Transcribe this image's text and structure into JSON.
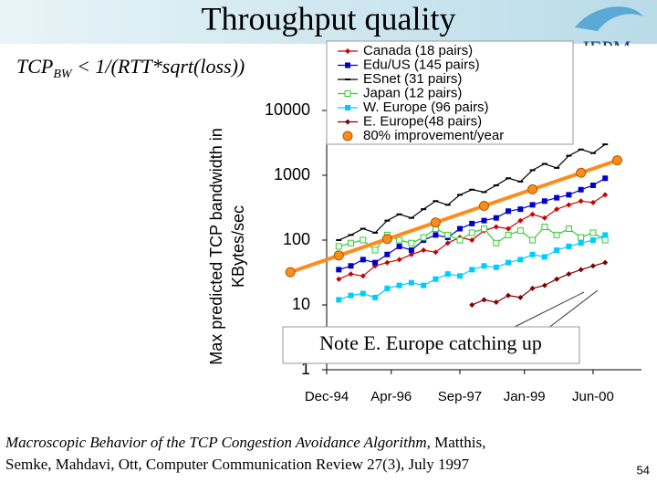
{
  "slide": {
    "title": "Throughput quality",
    "formula": {
      "base": "TCP",
      "subscript": "BW",
      "rest": " < 1/(RTT*sqrt(loss))"
    },
    "logo": "IEPM",
    "citation": {
      "title": "Macroscopic Behavior of the TCP Congestion Avoidance Algorithm",
      "line1_rest": ", Matthis,",
      "line2": "Semke, Mahdavi, Ott, Computer Communication Review 27(3), July 1997"
    },
    "page_number": "54"
  },
  "chart_data": {
    "type": "line",
    "y_log": true,
    "y_label": [
      "Max predicted TCP bandwidth in",
      "KBytes/sec"
    ],
    "annotation": "Note E. Europe catching up",
    "x": [
      "Mar-95",
      "Jun-95",
      "Sep-95",
      "Dec-95",
      "Mar-96",
      "Jun-96",
      "Sep-96",
      "Dec-96",
      "Mar-97",
      "Jun-97",
      "Sep-97",
      "Dec-97",
      "Mar-98",
      "Jun-98",
      "Sep-98",
      "Dec-98",
      "Mar-99",
      "Jun-99",
      "Sep-99",
      "Dec-99",
      "Mar-00",
      "Jun-00",
      "Sep-00"
    ],
    "xlim": [
      "Dec-94",
      "Jun-01"
    ],
    "xticks": [
      "Dec-94",
      "Apr-96",
      "Sep-97",
      "Jan-99",
      "Jun-00"
    ],
    "ylim": [
      1,
      100000
    ],
    "yticks": [
      1,
      10,
      100,
      1000,
      10000
    ],
    "series": [
      {
        "name": "Canada (18 pairs)",
        "color": "#cc0000",
        "marker": "diamond",
        "values": [
          25,
          30,
          28,
          40,
          45,
          50,
          60,
          70,
          65,
          90,
          110,
          100,
          140,
          160,
          150,
          200,
          250,
          220,
          300,
          350,
          400,
          380,
          500
        ]
      },
      {
        "name": "Edu/US (145 pairs)",
        "color": "#0000cc",
        "marker": "square",
        "values": [
          35,
          40,
          50,
          45,
          60,
          80,
          70,
          100,
          120,
          110,
          150,
          180,
          200,
          220,
          280,
          300,
          350,
          400,
          450,
          500,
          600,
          700,
          900
        ]
      },
      {
        "name": "ESnet (31 pairs)",
        "color": "#000000",
        "marker": "tri",
        "values": [
          100,
          120,
          150,
          130,
          200,
          250,
          220,
          300,
          400,
          350,
          500,
          600,
          550,
          700,
          900,
          800,
          1200,
          1500,
          1300,
          2000,
          2500,
          2200,
          3000
        ]
      },
      {
        "name": "Japan (12 pairs)",
        "color": "#33cc33",
        "marker": "open-square",
        "values": [
          80,
          90,
          100,
          70,
          120,
          100,
          90,
          110,
          150,
          120,
          100,
          130,
          150,
          90,
          120,
          140,
          100,
          160,
          120,
          150,
          110,
          130,
          100
        ]
      },
      {
        "name": "W. Europe (96 pairs)",
        "color": "#00ccff",
        "marker": "square",
        "values": [
          12,
          14,
          15,
          13,
          18,
          20,
          22,
          20,
          25,
          30,
          28,
          35,
          40,
          38,
          45,
          50,
          60,
          55,
          70,
          80,
          90,
          100,
          120
        ]
      },
      {
        "name": "E. Europe(48 pairs)",
        "color": "#800000",
        "marker": "diamond",
        "values": [
          null,
          null,
          null,
          null,
          null,
          null,
          null,
          null,
          null,
          null,
          null,
          10,
          12,
          11,
          14,
          13,
          18,
          20,
          25,
          30,
          35,
          40,
          45
        ]
      },
      {
        "name": "80% improvement/year",
        "color": "#ff8c1a",
        "marker": "circle",
        "x": [
          "Mar-94",
          "Mar-95",
          "Mar-96",
          "Mar-97",
          "Mar-98",
          "Mar-99",
          "Mar-00",
          "Dec-00"
        ],
        "values": [
          32,
          58,
          104,
          187,
          337,
          607,
          1092,
          1700
        ]
      }
    ]
  }
}
